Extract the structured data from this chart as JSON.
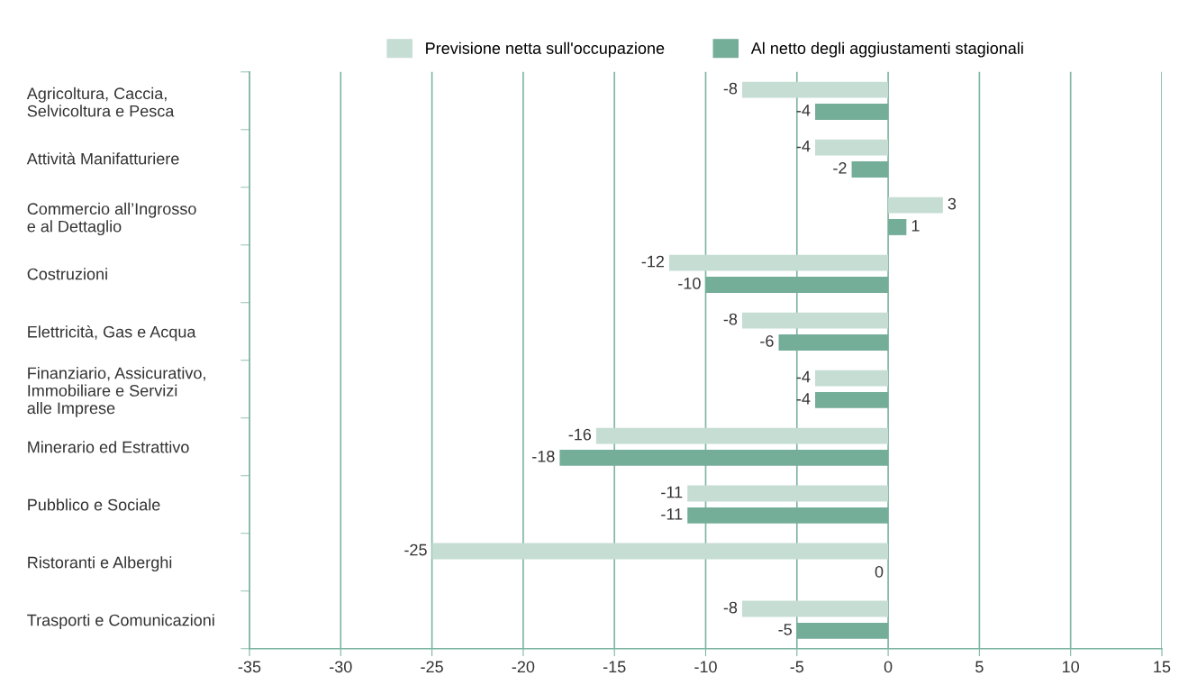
{
  "chart_data": {
    "type": "bar",
    "orientation": "horizontal",
    "categories": [
      "Agricoltura, Caccia,\nSelvicoltura e Pesca",
      "Attività Manifatturiere",
      "Commercio all’Ingrosso\ne al Dettaglio",
      "Costruzioni",
      "Elettricità, Gas e Acqua",
      "Finanziario, Assicurativo,\nImmobiliare e Servizi\nalle Imprese",
      "Minerario ed Estrattivo",
      "Pubblico e Sociale",
      "Ristoranti e Alberghi",
      "Trasporti e Comunicazioni"
    ],
    "series": [
      {
        "name": "Previsione netta sull'occupazione",
        "color": "#c5ddd3",
        "values": [
          -8,
          -4,
          3,
          -12,
          -8,
          -4,
          -16,
          -11,
          -25,
          -8
        ]
      },
      {
        "name": "Al netto degli aggiustamenti stagionali",
        "color": "#74ad98",
        "values": [
          -4,
          -2,
          1,
          -10,
          -6,
          -4,
          -18,
          -11,
          0,
          -5
        ]
      }
    ],
    "xlim": [
      -35,
      15
    ],
    "xticks": [
      -35,
      -30,
      -25,
      -20,
      -15,
      -10,
      -5,
      0,
      5,
      10,
      15
    ],
    "grid": "x",
    "legend": "top",
    "data_labels": true
  }
}
